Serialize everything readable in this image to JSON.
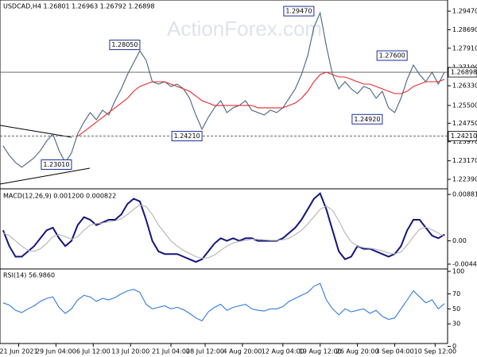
{
  "chart_data": [
    {
      "type": "line",
      "title": "USDCAD,H4 1.26801 1.26963 1.26792 1.26898",
      "watermark": "ActionForex.com",
      "xlim": [
        -0.5,
        71.5
      ],
      "ylim": [
        1.2199,
        1.2994
      ],
      "yticks": [
        {
          "value": 1.2947,
          "label": "1.29470"
        },
        {
          "value": 1.2869,
          "label": "1.28690"
        },
        {
          "value": 1.2791,
          "label": "1.27910"
        },
        {
          "value": 1.271,
          "label": "1.27100"
        },
        {
          "value": 1.2633,
          "label": "1.26330"
        },
        {
          "value": 1.255,
          "label": "1.25500"
        },
        {
          "value": 1.2475,
          "label": "1.24750"
        },
        {
          "value": 1.2397,
          "label": "1.23970"
        },
        {
          "value": 1.2317,
          "label": "1.23170"
        },
        {
          "value": 1.2239,
          "label": "1.22390"
        }
      ],
      "levels": [
        {
          "value": 1.26898,
          "label": "1.26898",
          "style": "solid"
        },
        {
          "value": 1.2421,
          "label": "1.24210",
          "style": "dashed"
        }
      ],
      "annotations": [
        {
          "label": "1.28050",
          "value": 1.2805,
          "x": 22
        },
        {
          "label": "1.29470",
          "value": 1.2947,
          "x": 50
        },
        {
          "label": "1.27600",
          "value": 1.276,
          "x": 65
        },
        {
          "label": "1.24210",
          "value": 1.2421,
          "x": 32
        },
        {
          "label": "1.24920",
          "value": 1.2492,
          "x": 61
        },
        {
          "label": "1.23010",
          "value": 1.2301,
          "x": 11
        }
      ],
      "series": [
        {
          "name": "Price",
          "color": "#48647f",
          "values": [
            1.238,
            1.234,
            1.231,
            1.229,
            1.231,
            1.233,
            1.236,
            1.24,
            1.243,
            1.236,
            1.231,
            1.235,
            1.243,
            1.248,
            1.252,
            1.249,
            1.253,
            1.251,
            1.257,
            1.262,
            1.268,
            1.273,
            1.278,
            1.274,
            1.265,
            1.264,
            1.265,
            1.263,
            1.264,
            1.262,
            1.258,
            1.251,
            1.245,
            1.25,
            1.254,
            1.257,
            1.252,
            1.254,
            1.255,
            1.257,
            1.253,
            1.252,
            1.251,
            1.253,
            1.252,
            1.254,
            1.258,
            1.262,
            1.268,
            1.276,
            1.288,
            1.294,
            1.28,
            1.268,
            1.262,
            1.265,
            1.262,
            1.26,
            1.263,
            1.262,
            1.258,
            1.261,
            1.254,
            1.252,
            1.258,
            1.266,
            1.272,
            1.268,
            1.265,
            1.269,
            1.264,
            1.269
          ]
        },
        {
          "name": "MA",
          "color": "#e8282b",
          "values": [
            null,
            null,
            null,
            null,
            null,
            null,
            null,
            null,
            null,
            null,
            null,
            null,
            1.242,
            1.244,
            1.246,
            1.248,
            1.25,
            1.252,
            1.254,
            1.256,
            1.258,
            1.261,
            1.263,
            1.264,
            1.265,
            1.265,
            1.265,
            1.264,
            1.263,
            1.262,
            1.261,
            1.259,
            1.257,
            1.256,
            1.255,
            1.255,
            1.255,
            1.255,
            1.255,
            1.255,
            1.255,
            1.254,
            1.254,
            1.254,
            1.254,
            1.254,
            1.255,
            1.256,
            1.258,
            1.261,
            1.265,
            1.268,
            1.269,
            1.268,
            1.267,
            1.267,
            1.266,
            1.265,
            1.264,
            1.264,
            1.263,
            1.262,
            1.261,
            1.26,
            1.26,
            1.261,
            1.263,
            1.264,
            1.265,
            1.265,
            1.265,
            1.266
          ]
        }
      ]
    },
    {
      "type": "line",
      "title": "MACD(12,26,9) 0.001200 0.000822",
      "xlim": [
        -0.5,
        71.5
      ],
      "ylim": [
        -0.00533,
        0.00973
      ],
      "yticks": [
        0.008816,
        {
          "value": 0,
          "label": "0.00"
        },
        -0.004416
      ],
      "series": [
        {
          "name": "MACD",
          "color": "#14147f",
          "values": [
            0.002,
            -0.001,
            -0.003,
            -0.003,
            -0.002,
            -0.001,
            0.0005,
            0.002,
            0.0025,
            0.0005,
            -0.001,
            0,
            0.003,
            0.0045,
            0.004,
            0.003,
            0.0035,
            0.004,
            0.004,
            0.005,
            0.007,
            0.008,
            0.0075,
            0.004,
            0,
            -0.002,
            -0.0025,
            -0.0025,
            -0.0025,
            -0.003,
            -0.0035,
            -0.004,
            -0.0035,
            -0.002,
            -0.0005,
            0.0005,
            0,
            0.0005,
            0,
            0.0005,
            0.0005,
            0,
            0,
            0,
            0,
            0.0005,
            0.0015,
            0.0025,
            0.004,
            0.006,
            0.008,
            0.009,
            0.006,
            0.002,
            -0.002,
            -0.0035,
            -0.003,
            -0.001,
            -0.0015,
            -0.0015,
            -0.002,
            -0.0025,
            -0.003,
            -0.0025,
            -0.001,
            0.002,
            0.004,
            0.004,
            0.0025,
            0.001,
            0.0005,
            0.0012
          ]
        },
        {
          "name": "Signal",
          "color": "#b4b4b4",
          "values": [
            0.0015,
            0.001,
            0,
            -0.001,
            -0.0018,
            -0.002,
            -0.0015,
            -0.0005,
            0.0008,
            0.0012,
            0.0008,
            0.0003,
            0.0008,
            0.002,
            0.003,
            0.0033,
            0.0034,
            0.0036,
            0.0038,
            0.0042,
            0.005,
            0.006,
            0.0068,
            0.0065,
            0.005,
            0.003,
            0.0015,
            0,
            -0.001,
            -0.0018,
            -0.0024,
            -0.003,
            -0.0033,
            -0.0032,
            -0.0027,
            -0.0018,
            -0.001,
            -0.0004,
            -0.0001,
            0.0001,
            0.0003,
            0.0003,
            0.0002,
            0.0001,
            0.0001,
            0.0002,
            0.0005,
            0.0012,
            0.002,
            0.0032,
            0.0046,
            0.006,
            0.0066,
            0.0058,
            0.0038,
            0.0015,
            -0.0002,
            -0.001,
            -0.0013,
            -0.0014,
            -0.0016,
            -0.0019,
            -0.0023,
            -0.0025,
            -0.0021,
            -0.0008,
            0.0008,
            0.0022,
            0.0026,
            0.0021,
            0.0015,
            0.0008
          ]
        }
      ]
    },
    {
      "type": "line",
      "title": "RSI(14) 56.9860",
      "xlim": [
        -0.5,
        71.5
      ],
      "ylim": [
        3.8,
        103.2
      ],
      "yticks": [
        100,
        70,
        50,
        30,
        0
      ],
      "xticks": [
        {
          "value": 2.5,
          "label": "21 Jun 2021"
        },
        {
          "value": 8.5,
          "label": "29 Jun 04:00"
        },
        {
          "value": 14.5,
          "label": "6 Jul 12:00"
        },
        {
          "value": 20.5,
          "label": "13 Jul 20:00"
        },
        {
          "value": 27,
          "label": "21 Jul 04:00"
        },
        {
          "value": 32.5,
          "label": "28 Jul 12:00"
        },
        {
          "value": 38.5,
          "label": "4 Aug 20:00"
        },
        {
          "value": 45,
          "label": "12 Aug 04:00"
        },
        {
          "value": 51,
          "label": "19 Aug 12:00"
        },
        {
          "value": 57,
          "label": "26 Aug 20:00"
        },
        {
          "value": 63,
          "label": "3 Sep 04:00"
        },
        {
          "value": 69.5,
          "label": "10 Sep 12:00"
        }
      ],
      "series": [
        {
          "name": "RSI",
          "color": "#2f7be0",
          "values": [
            58,
            55,
            48,
            45,
            50,
            54,
            60,
            64,
            66,
            52,
            44,
            50,
            62,
            68,
            66,
            60,
            64,
            62,
            65,
            70,
            74,
            76,
            72,
            56,
            50,
            52,
            54,
            50,
            52,
            49,
            44,
            38,
            34,
            46,
            52,
            56,
            48,
            52,
            54,
            56,
            50,
            48,
            47,
            50,
            50,
            53,
            60,
            64,
            68,
            72,
            80,
            84,
            62,
            50,
            42,
            50,
            46,
            48,
            50,
            44,
            48,
            40,
            36,
            38,
            50,
            62,
            74,
            66,
            58,
            62,
            50,
            57
          ]
        }
      ]
    }
  ]
}
